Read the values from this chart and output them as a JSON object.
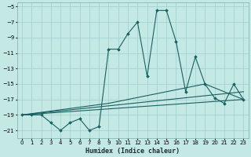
{
  "title": "",
  "xlabel": "Humidex (Indice chaleur)",
  "ylabel": "",
  "bg_color": "#c4e8e4",
  "grid_color": "#9ecece",
  "line_color": "#1a6060",
  "xlim": [
    -0.5,
    23.5
  ],
  "ylim": [
    -22,
    -4.5
  ],
  "xticks": [
    0,
    1,
    2,
    3,
    4,
    5,
    6,
    7,
    8,
    9,
    10,
    11,
    12,
    13,
    14,
    15,
    16,
    17,
    18,
    19,
    20,
    21,
    22,
    23
  ],
  "yticks": [
    -5,
    -7,
    -9,
    -11,
    -13,
    -15,
    -17,
    -19,
    -21
  ],
  "main_x": [
    0,
    1,
    2,
    3,
    4,
    5,
    6,
    7,
    8,
    9,
    10,
    11,
    12,
    13,
    14,
    15,
    16,
    17,
    18,
    19,
    20,
    21,
    22,
    23
  ],
  "main_y": [
    -19,
    -19,
    -19,
    -20,
    -21,
    -20,
    -19.5,
    -21,
    -20.5,
    -10.5,
    -10.5,
    -8.5,
    -7,
    -14,
    -5.5,
    -5.5,
    -9.5,
    -16,
    -11.5,
    -15,
    -16.8,
    -17.5,
    -15,
    -17
  ],
  "line2_x": [
    0,
    23
  ],
  "line2_y": [
    -19,
    -17
  ],
  "line3_x": [
    0,
    23
  ],
  "line3_y": [
    -19,
    -16
  ],
  "line4_x": [
    0,
    9,
    19,
    23
  ],
  "line4_y": [
    -19,
    -17.5,
    -15,
    -17
  ]
}
